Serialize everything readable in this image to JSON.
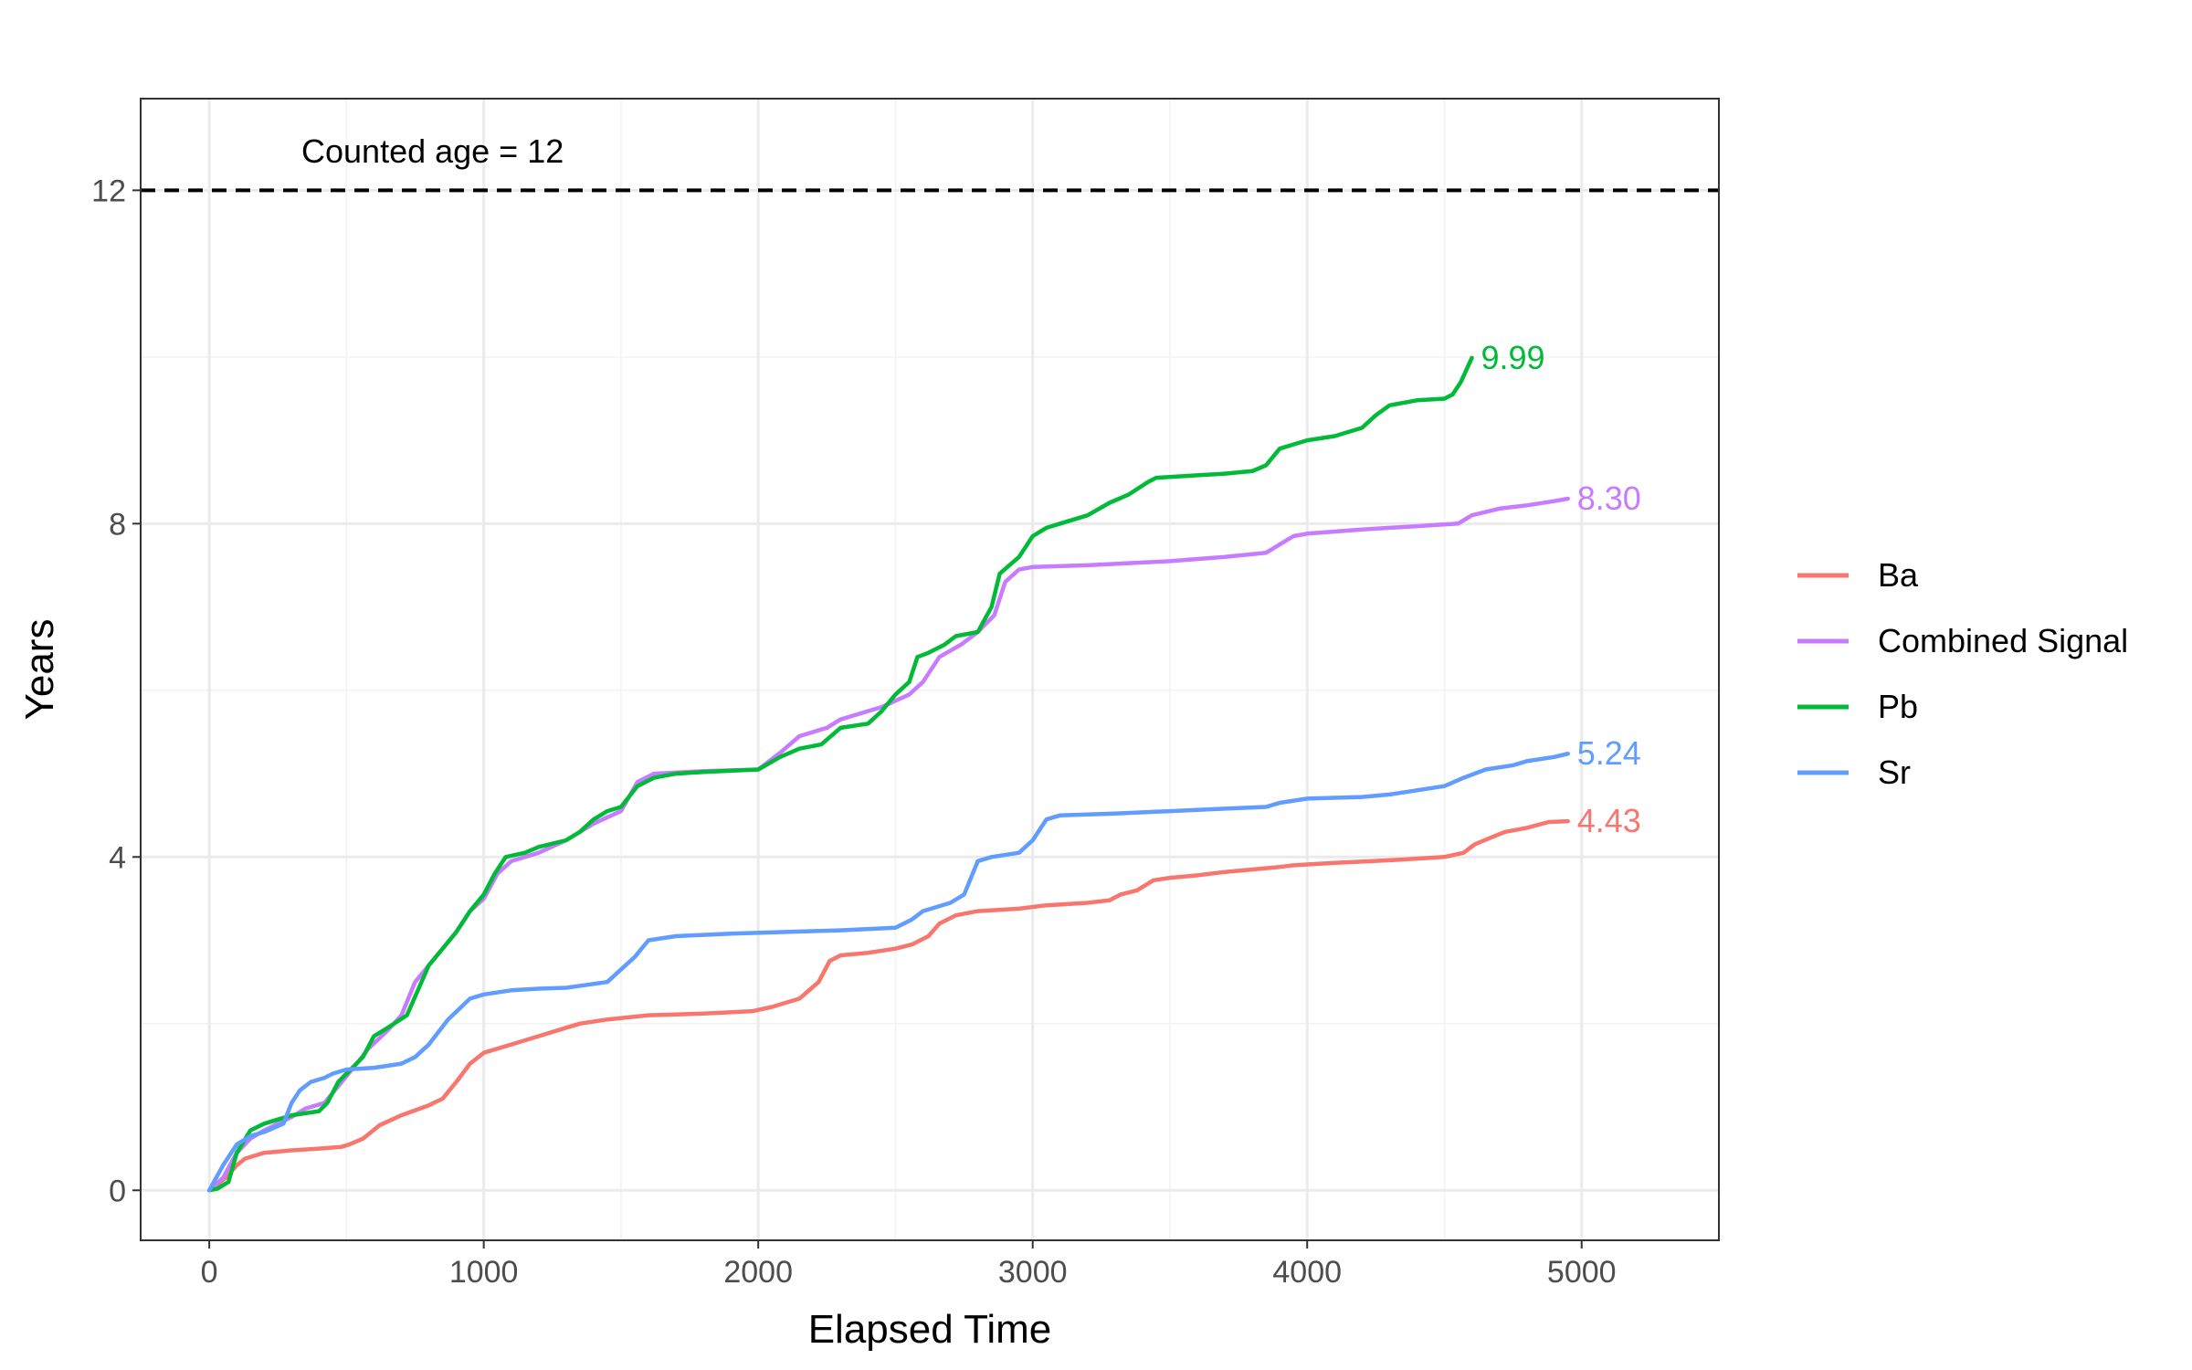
{
  "chart_data": {
    "type": "line",
    "xlabel": "Elapsed Time",
    "ylabel": "Years",
    "xlim": [
      -250,
      5500
    ],
    "ylim": [
      -0.6,
      13.1
    ],
    "x_ticks": [
      0,
      1000,
      2000,
      3000,
      4000,
      5000
    ],
    "y_ticks": [
      0,
      4,
      8,
      12
    ],
    "grid": true,
    "legend_position": "right",
    "reference_line": {
      "y": 12,
      "style": "dashed",
      "label": "Counted age =  12"
    },
    "series": [
      {
        "name": "Ba",
        "color": "#F8766D",
        "end_label": "4.43",
        "points": [
          [
            0,
            0
          ],
          [
            60,
            0.15
          ],
          [
            100,
            0.3
          ],
          [
            130,
            0.38
          ],
          [
            200,
            0.45
          ],
          [
            300,
            0.48
          ],
          [
            400,
            0.5
          ],
          [
            480,
            0.52
          ],
          [
            510,
            0.55
          ],
          [
            560,
            0.62
          ],
          [
            620,
            0.78
          ],
          [
            700,
            0.9
          ],
          [
            800,
            1.02
          ],
          [
            850,
            1.1
          ],
          [
            900,
            1.3
          ],
          [
            950,
            1.52
          ],
          [
            1000,
            1.65
          ],
          [
            1100,
            1.75
          ],
          [
            1200,
            1.85
          ],
          [
            1300,
            1.95
          ],
          [
            1350,
            2.0
          ],
          [
            1450,
            2.05
          ],
          [
            1600,
            2.1
          ],
          [
            1800,
            2.12
          ],
          [
            1980,
            2.15
          ],
          [
            2050,
            2.2
          ],
          [
            2150,
            2.3
          ],
          [
            2220,
            2.5
          ],
          [
            2260,
            2.75
          ],
          [
            2300,
            2.82
          ],
          [
            2400,
            2.85
          ],
          [
            2500,
            2.9
          ],
          [
            2560,
            2.95
          ],
          [
            2620,
            3.05
          ],
          [
            2660,
            3.2
          ],
          [
            2720,
            3.3
          ],
          [
            2800,
            3.35
          ],
          [
            2950,
            3.38
          ],
          [
            3050,
            3.42
          ],
          [
            3200,
            3.45
          ],
          [
            3280,
            3.48
          ],
          [
            3320,
            3.55
          ],
          [
            3380,
            3.6
          ],
          [
            3440,
            3.72
          ],
          [
            3500,
            3.75
          ],
          [
            3600,
            3.78
          ],
          [
            3700,
            3.82
          ],
          [
            3800,
            3.85
          ],
          [
            3900,
            3.88
          ],
          [
            3950,
            3.9
          ],
          [
            4100,
            3.93
          ],
          [
            4300,
            3.96
          ],
          [
            4400,
            3.98
          ],
          [
            4500,
            4.0
          ],
          [
            4570,
            4.05
          ],
          [
            4610,
            4.15
          ],
          [
            4660,
            4.22
          ],
          [
            4720,
            4.3
          ],
          [
            4800,
            4.35
          ],
          [
            4880,
            4.42
          ],
          [
            4950,
            4.43
          ]
        ]
      },
      {
        "name": "Combined Signal",
        "color": "#C77CFF",
        "end_label": "8.30",
        "points": [
          [
            0,
            0
          ],
          [
            50,
            0.15
          ],
          [
            100,
            0.45
          ],
          [
            150,
            0.62
          ],
          [
            200,
            0.72
          ],
          [
            300,
            0.88
          ],
          [
            350,
            0.98
          ],
          [
            420,
            1.05
          ],
          [
            470,
            1.25
          ],
          [
            520,
            1.45
          ],
          [
            580,
            1.7
          ],
          [
            650,
            1.92
          ],
          [
            700,
            2.1
          ],
          [
            750,
            2.5
          ],
          [
            800,
            2.7
          ],
          [
            850,
            2.9
          ],
          [
            900,
            3.1
          ],
          [
            950,
            3.35
          ],
          [
            1000,
            3.5
          ],
          [
            1050,
            3.8
          ],
          [
            1100,
            3.95
          ],
          [
            1200,
            4.05
          ],
          [
            1300,
            4.2
          ],
          [
            1400,
            4.4
          ],
          [
            1500,
            4.55
          ],
          [
            1560,
            4.9
          ],
          [
            1620,
            5.0
          ],
          [
            1800,
            5.03
          ],
          [
            2000,
            5.05
          ],
          [
            2080,
            5.25
          ],
          [
            2150,
            5.45
          ],
          [
            2250,
            5.55
          ],
          [
            2300,
            5.65
          ],
          [
            2400,
            5.75
          ],
          [
            2450,
            5.8
          ],
          [
            2550,
            5.95
          ],
          [
            2600,
            6.1
          ],
          [
            2660,
            6.4
          ],
          [
            2740,
            6.55
          ],
          [
            2800,
            6.7
          ],
          [
            2860,
            6.9
          ],
          [
            2900,
            7.3
          ],
          [
            2950,
            7.45
          ],
          [
            3000,
            7.48
          ],
          [
            3200,
            7.5
          ],
          [
            3500,
            7.55
          ],
          [
            3700,
            7.6
          ],
          [
            3850,
            7.65
          ],
          [
            3900,
            7.75
          ],
          [
            3950,
            7.85
          ],
          [
            4000,
            7.88
          ],
          [
            4200,
            7.93
          ],
          [
            4400,
            7.97
          ],
          [
            4550,
            8.0
          ],
          [
            4600,
            8.1
          ],
          [
            4700,
            8.18
          ],
          [
            4800,
            8.22
          ],
          [
            4900,
            8.27
          ],
          [
            4950,
            8.3
          ]
        ]
      },
      {
        "name": "Pb",
        "color": "#00BA38",
        "end_label": "9.99",
        "points": [
          [
            0,
            0
          ],
          [
            30,
            0.02
          ],
          [
            70,
            0.1
          ],
          [
            100,
            0.45
          ],
          [
            150,
            0.72
          ],
          [
            200,
            0.8
          ],
          [
            250,
            0.85
          ],
          [
            300,
            0.9
          ],
          [
            400,
            0.95
          ],
          [
            430,
            1.05
          ],
          [
            470,
            1.3
          ],
          [
            530,
            1.5
          ],
          [
            560,
            1.6
          ],
          [
            600,
            1.85
          ],
          [
            650,
            1.95
          ],
          [
            720,
            2.1
          ],
          [
            760,
            2.4
          ],
          [
            800,
            2.7
          ],
          [
            850,
            2.9
          ],
          [
            900,
            3.1
          ],
          [
            950,
            3.35
          ],
          [
            1000,
            3.55
          ],
          [
            1040,
            3.8
          ],
          [
            1080,
            4.0
          ],
          [
            1150,
            4.05
          ],
          [
            1200,
            4.12
          ],
          [
            1300,
            4.2
          ],
          [
            1350,
            4.3
          ],
          [
            1400,
            4.45
          ],
          [
            1450,
            4.55
          ],
          [
            1500,
            4.6
          ],
          [
            1560,
            4.85
          ],
          [
            1620,
            4.95
          ],
          [
            1700,
            5.0
          ],
          [
            1800,
            5.02
          ],
          [
            2000,
            5.05
          ],
          [
            2080,
            5.2
          ],
          [
            2150,
            5.3
          ],
          [
            2230,
            5.35
          ],
          [
            2300,
            5.55
          ],
          [
            2400,
            5.6
          ],
          [
            2450,
            5.75
          ],
          [
            2500,
            5.95
          ],
          [
            2550,
            6.1
          ],
          [
            2580,
            6.4
          ],
          [
            2620,
            6.45
          ],
          [
            2680,
            6.55
          ],
          [
            2720,
            6.65
          ],
          [
            2800,
            6.7
          ],
          [
            2850,
            7.0
          ],
          [
            2880,
            7.4
          ],
          [
            2950,
            7.6
          ],
          [
            3000,
            7.85
          ],
          [
            3050,
            7.95
          ],
          [
            3100,
            8.0
          ],
          [
            3200,
            8.1
          ],
          [
            3280,
            8.25
          ],
          [
            3350,
            8.35
          ],
          [
            3420,
            8.5
          ],
          [
            3450,
            8.55
          ],
          [
            3600,
            8.58
          ],
          [
            3700,
            8.6
          ],
          [
            3800,
            8.63
          ],
          [
            3850,
            8.7
          ],
          [
            3900,
            8.9
          ],
          [
            3950,
            8.95
          ],
          [
            4000,
            9.0
          ],
          [
            4100,
            9.05
          ],
          [
            4200,
            9.15
          ],
          [
            4250,
            9.3
          ],
          [
            4300,
            9.42
          ],
          [
            4400,
            9.48
          ],
          [
            4500,
            9.5
          ],
          [
            4530,
            9.55
          ],
          [
            4560,
            9.7
          ],
          [
            4600,
            9.99
          ]
        ]
      },
      {
        "name": "Sr",
        "color": "#619CFF",
        "end_label": "5.24",
        "points": [
          [
            0,
            0
          ],
          [
            50,
            0.3
          ],
          [
            100,
            0.55
          ],
          [
            150,
            0.65
          ],
          [
            200,
            0.7
          ],
          [
            270,
            0.8
          ],
          [
            300,
            1.05
          ],
          [
            330,
            1.2
          ],
          [
            370,
            1.3
          ],
          [
            420,
            1.35
          ],
          [
            450,
            1.4
          ],
          [
            500,
            1.45
          ],
          [
            600,
            1.47
          ],
          [
            700,
            1.52
          ],
          [
            750,
            1.6
          ],
          [
            800,
            1.75
          ],
          [
            870,
            2.05
          ],
          [
            950,
            2.3
          ],
          [
            1000,
            2.35
          ],
          [
            1100,
            2.4
          ],
          [
            1200,
            2.42
          ],
          [
            1300,
            2.43
          ],
          [
            1450,
            2.5
          ],
          [
            1550,
            2.8
          ],
          [
            1600,
            3.0
          ],
          [
            1700,
            3.05
          ],
          [
            1900,
            3.08
          ],
          [
            2100,
            3.1
          ],
          [
            2300,
            3.12
          ],
          [
            2500,
            3.15
          ],
          [
            2560,
            3.25
          ],
          [
            2600,
            3.35
          ],
          [
            2700,
            3.45
          ],
          [
            2750,
            3.55
          ],
          [
            2800,
            3.95
          ],
          [
            2850,
            4.0
          ],
          [
            2950,
            4.05
          ],
          [
            3000,
            4.2
          ],
          [
            3050,
            4.45
          ],
          [
            3100,
            4.5
          ],
          [
            3300,
            4.52
          ],
          [
            3500,
            4.55
          ],
          [
            3700,
            4.58
          ],
          [
            3850,
            4.6
          ],
          [
            3900,
            4.65
          ],
          [
            4000,
            4.7
          ],
          [
            4200,
            4.72
          ],
          [
            4300,
            4.75
          ],
          [
            4400,
            4.8
          ],
          [
            4500,
            4.85
          ],
          [
            4570,
            4.95
          ],
          [
            4650,
            5.05
          ],
          [
            4750,
            5.1
          ],
          [
            4800,
            5.15
          ],
          [
            4900,
            5.2
          ],
          [
            4950,
            5.24
          ]
        ]
      }
    ]
  }
}
